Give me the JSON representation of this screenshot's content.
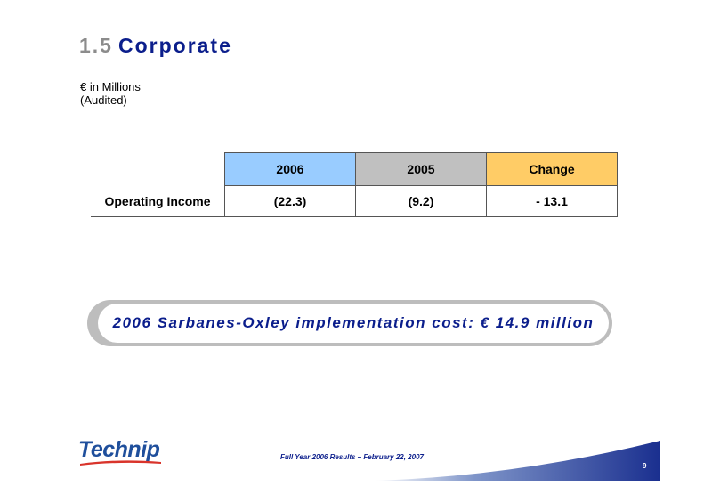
{
  "title": {
    "number": "1.5",
    "text": "Corporate"
  },
  "subtitle": {
    "line1": "€ in Millions",
    "line2": "(Audited)"
  },
  "table": {
    "columns": [
      "2006",
      "2005",
      "Change"
    ],
    "rows": [
      {
        "label": "Operating Income",
        "values": [
          "(22.3)",
          "(9.2)",
          "- 13.1"
        ]
      }
    ],
    "colors": {
      "2006": "#99ccff",
      "2005": "#c0c0c0",
      "change": "#ffcc66"
    }
  },
  "callout": {
    "text": "2006 Sarbanes-Oxley implementation cost: € 14.9 million"
  },
  "footer": {
    "logo_text": "Technip",
    "caption": "Full Year 2006 Results – February 22, 2007",
    "page_number": "9"
  }
}
